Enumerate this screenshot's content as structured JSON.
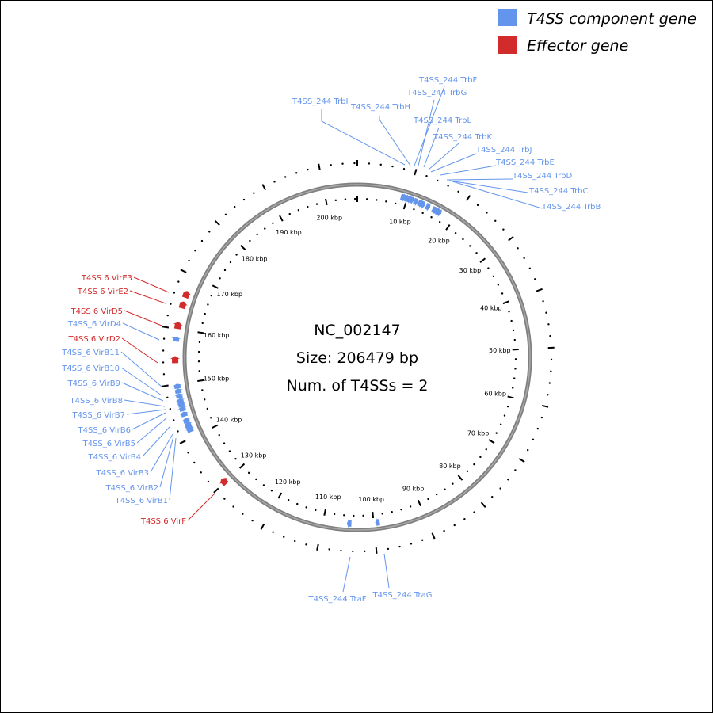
{
  "legend": {
    "items": [
      {
        "label": "T4SS component gene",
        "color": "#6495ED"
      },
      {
        "label": "Effector gene",
        "color": "#D22B2B"
      }
    ]
  },
  "center": {
    "accession": "NC_002147",
    "size": "Size: 206479 bp",
    "num_t4ss": "Num. of T4SSs = 2"
  },
  "genome": {
    "length_bp": 206479,
    "tick_labels": [
      "10 kbp",
      "20 kbp",
      "30 kbp",
      "40 kbp",
      "50 kbp",
      "60 kbp",
      "70 kbp",
      "80 kbp",
      "90 kbp",
      "100 kbp",
      "110 kbp",
      "120 kbp",
      "130 kbp",
      "140 kbp",
      "150 kbp",
      "160 kbp",
      "170 kbp",
      "180 kbp",
      "190 kbp",
      "200 kbp"
    ]
  },
  "colors": {
    "component": "#6495ED",
    "effector": "#D22B2B",
    "backbone": "#808080"
  },
  "genes": [
    {
      "label": "T4SS_244 TrbI",
      "type": "component",
      "bp": 8700
    },
    {
      "label": "T4SS_244 TrbH",
      "type": "component",
      "bp": 9300
    },
    {
      "label": "T4SS_244 TrbF",
      "type": "component",
      "bp": 9900
    },
    {
      "label": "T4SS_244 TrbG",
      "type": "component",
      "bp": 10500
    },
    {
      "label": "T4SS_244 TrbL",
      "type": "component",
      "bp": 11400
    },
    {
      "label": "T4SS_244 TrbK",
      "type": "component",
      "bp": 12300
    },
    {
      "label": "T4SS_244 TrbJ",
      "type": "component",
      "bp": 12900
    },
    {
      "label": "T4SS_244 TrbE",
      "type": "component",
      "bp": 14000
    },
    {
      "label": "T4SS_244 TrbD",
      "type": "component",
      "bp": 15400
    },
    {
      "label": "T4SS_244 TrbC",
      "type": "component",
      "bp": 15900
    },
    {
      "label": "T4SS_244 TrbB",
      "type": "component",
      "bp": 16500
    },
    {
      "label": "T4SS_244 TraG",
      "type": "component",
      "bp": 98800
    },
    {
      "label": "T4SS_244 TraF",
      "type": "component",
      "bp": 104400
    },
    {
      "label": "T4SS 6 VirF",
      "type": "effector",
      "bp": 129600
    },
    {
      "label": "T4SS_6 VirB1",
      "type": "component",
      "bp": 141000
    },
    {
      "label": "T4SS_6 VirB2",
      "type": "component",
      "bp": 141500
    },
    {
      "label": "T4SS_6 VirB3",
      "type": "component",
      "bp": 142000
    },
    {
      "label": "T4SS_6 VirB4",
      "type": "component",
      "bp": 142800
    },
    {
      "label": "T4SS_6 VirB5",
      "type": "component",
      "bp": 144000
    },
    {
      "label": "T4SS_6 VirB6",
      "type": "component",
      "bp": 145000
    },
    {
      "label": "T4SS_6 VirB7",
      "type": "component",
      "bp": 145800
    },
    {
      "label": "T4SS_6 VirB8",
      "type": "component",
      "bp": 146500
    },
    {
      "label": "T4SS_6 VirB9",
      "type": "component",
      "bp": 147400
    },
    {
      "label": "T4SS_6 VirB10",
      "type": "component",
      "bp": 148300
    },
    {
      "label": "T4SS_6 VirB11",
      "type": "component",
      "bp": 149200
    },
    {
      "label": "T4SS 6 VirD2",
      "type": "effector",
      "bp": 153800
    },
    {
      "label": "T4SS_6 VirD4",
      "type": "component",
      "bp": 157700
    },
    {
      "label": "T4SS 6 VirD5",
      "type": "effector",
      "bp": 160000
    },
    {
      "label": "T4SS 6 VirE2",
      "type": "effector",
      "bp": 163800
    },
    {
      "label": "T4SS 6 VirE3",
      "type": "effector",
      "bp": 165800
    }
  ]
}
